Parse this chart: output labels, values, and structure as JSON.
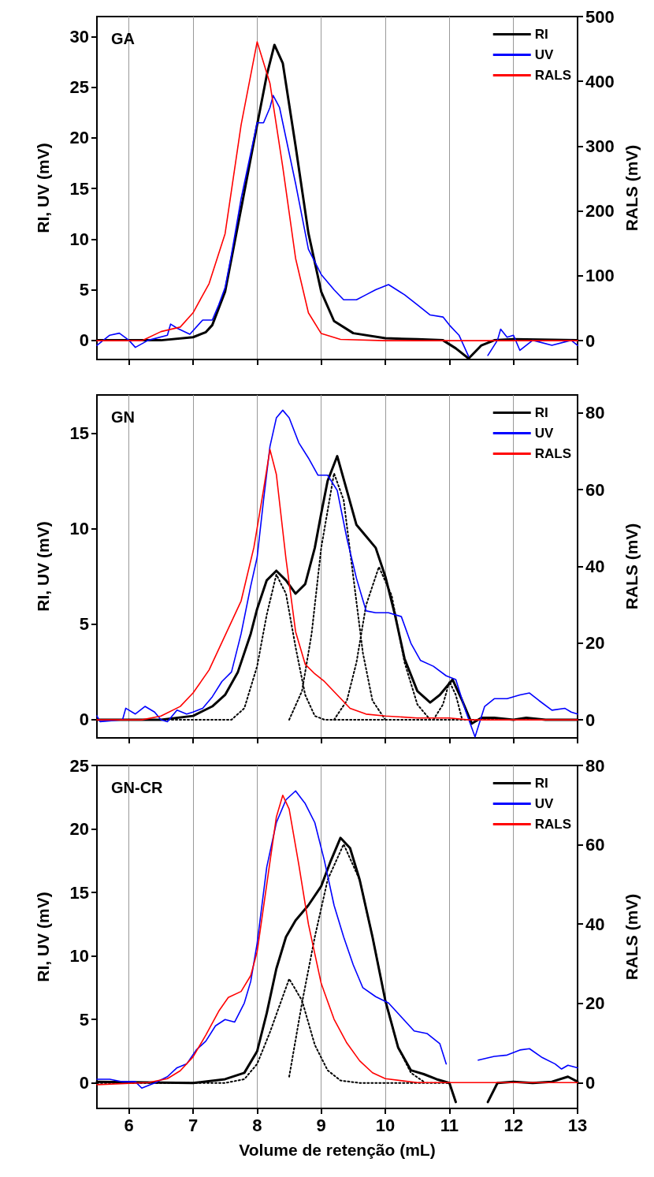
{
  "chart_data": [
    {
      "type": "line",
      "title": "GA",
      "ylabel": "RI, UV (mV)",
      "y2label": "RALS (mV)",
      "xlim": [
        5.5,
        13
      ],
      "xticks": [
        6,
        7,
        8,
        9,
        10,
        11,
        12,
        13
      ],
      "ylim": [
        -1.9,
        32
      ],
      "yticks": [
        0,
        5,
        10,
        15,
        20,
        25,
        30
      ],
      "y2lim": [
        -29,
        500
      ],
      "y2ticks": [
        0,
        100,
        200,
        300,
        400,
        500
      ],
      "grid": "x",
      "legend": "top right",
      "marker": "none",
      "tick_labels": "y",
      "series": [
        {
          "name": "RI",
          "color": "#000000",
          "x": [
            5.5,
            6.5,
            7.0,
            7.2,
            7.3,
            7.5,
            7.75,
            8.0,
            8.15,
            8.27,
            8.4,
            8.6,
            8.8,
            9.0,
            9.2,
            9.5,
            10.0,
            10.5,
            10.9,
            11.1,
            11.3,
            11.5,
            11.7,
            12.0,
            13.0
          ],
          "values": [
            0,
            0,
            0.3,
            0.8,
            1.5,
            4.8,
            13,
            21.3,
            26.2,
            29.2,
            27.4,
            19.2,
            10.6,
            4.8,
            1.9,
            0.7,
            0.2,
            0.1,
            0,
            -0.8,
            -1.8,
            -0.5,
            0,
            0.1,
            0
          ]
        },
        {
          "name": "UV",
          "color": "#0000ff",
          "x": [
            5.5,
            5.7,
            5.85,
            6.0,
            6.1,
            6.3,
            6.6,
            6.65,
            6.75,
            6.95,
            7.15,
            7.3,
            7.4,
            7.5,
            7.6,
            7.75,
            7.9,
            8.0,
            8.1,
            8.2,
            8.25,
            8.35,
            8.45,
            8.6,
            8.8,
            9.0,
            9.2,
            9.35,
            9.55,
            9.7,
            9.85,
            10.05,
            10.3,
            10.5,
            10.7,
            10.9,
            11.0,
            11.15,
            11.3,
            11.4,
            11.5,
            11.6,
            11.75,
            11.8,
            11.9,
            12.0,
            12.1,
            12.3,
            12.6,
            12.9,
            13.0
          ],
          "values": [
            -0.5,
            0.5,
            0.7,
            0,
            -0.7,
            0,
            0.5,
            1.6,
            1.2,
            0.6,
            2.0,
            2.0,
            3.5,
            5.2,
            8.5,
            14,
            18.5,
            21.5,
            21.5,
            23,
            24.2,
            23,
            20,
            15.5,
            9,
            6.5,
            5,
            4,
            4,
            4.5,
            5,
            5.5,
            4.5,
            3.5,
            2.5,
            2.3,
            1.5,
            0.5,
            -1.6,
            null,
            null,
            -1.5,
            0,
            1.1,
            0.3,
            0.5,
            -1,
            0,
            -0.5,
            0,
            -0.5
          ]
        },
        {
          "name": "RALS",
          "color": "#ff0000",
          "axis": "y2",
          "x": [
            5.5,
            6.2,
            6.5,
            6.8,
            7.0,
            7.25,
            7.5,
            7.75,
            8.0,
            8.2,
            8.4,
            8.6,
            8.8,
            9.0,
            9.3,
            10.0,
            11.0,
            13.0
          ],
          "values": [
            0,
            0,
            14,
            21,
            43,
            88,
            165,
            333,
            461,
            397,
            268,
            127,
            43,
            11,
            2,
            0,
            0,
            0
          ]
        }
      ]
    },
    {
      "type": "line",
      "title": "GN",
      "ylabel": "RI, UV (mV)",
      "y2label": "RALS (mV)",
      "xlim": [
        5.5,
        13
      ],
      "xticks": [
        6,
        7,
        8,
        9,
        10,
        11,
        12,
        13
      ],
      "ylim": [
        -0.95,
        17
      ],
      "yticks": [
        0,
        5,
        10,
        15
      ],
      "y2lim": [
        -4.7,
        84.7
      ],
      "y2ticks": [
        0,
        20,
        40,
        60,
        80
      ],
      "grid": "x",
      "legend": "top right",
      "marker": "none",
      "tick_labels": "y",
      "series": [
        {
          "color": "#000000",
          "line_style": "dotted",
          "x": [
            5.5,
            7.6,
            7.8,
            8.0,
            8.15,
            8.3,
            8.45,
            8.6,
            8.75,
            8.9,
            9.05,
            13.0
          ],
          "values": [
            0,
            0,
            0.6,
            2.8,
            5.5,
            7.6,
            6.6,
            3.8,
            1.3,
            0.2,
            0,
            0
          ]
        },
        {
          "color": "#000000",
          "line_style": "dotted",
          "x": [
            8.5,
            8.7,
            8.85,
            9.0,
            9.2,
            9.35,
            9.5,
            9.65,
            9.8,
            10.0
          ],
          "values": [
            0,
            1.5,
            4.5,
            9,
            12.9,
            11.5,
            7.5,
            3.5,
            1,
            0
          ]
        },
        {
          "color": "#000000",
          "line_style": "dotted",
          "x": [
            9.2,
            9.4,
            9.55,
            9.7,
            9.9,
            10.1,
            10.3,
            10.5,
            10.7
          ],
          "values": [
            0,
            1,
            3,
            6,
            8,
            6.5,
            3,
            0.8,
            0
          ]
        },
        {
          "color": "#000000",
          "line_style": "dotted",
          "x": [
            10.75,
            10.9,
            11.0,
            11.1,
            11.2
          ],
          "values": [
            0,
            0.8,
            2.0,
            1.3,
            0
          ]
        },
        {
          "name": "RI",
          "color": "#000000",
          "x": [
            5.5,
            6.5,
            7.0,
            7.3,
            7.5,
            7.7,
            7.9,
            8.0,
            8.15,
            8.3,
            8.45,
            8.6,
            8.75,
            8.9,
            9.0,
            9.1,
            9.25,
            9.4,
            9.55,
            9.7,
            9.85,
            10.0,
            10.15,
            10.3,
            10.5,
            10.7,
            10.85,
            11.05,
            11.2,
            11.35,
            11.5,
            11.7,
            12.0,
            12.2,
            12.5,
            13.0
          ],
          "values": [
            0,
            0,
            0.2,
            0.7,
            1.3,
            2.5,
            4.5,
            5.8,
            7.3,
            7.8,
            7.3,
            6.6,
            7.1,
            9,
            10.8,
            12.5,
            13.8,
            12,
            10.2,
            9.6,
            9.0,
            7.5,
            5.5,
            3.2,
            1.5,
            0.9,
            1.3,
            2.1,
            1.0,
            -0.2,
            0.1,
            0.1,
            0,
            0.1,
            0,
            0
          ]
        },
        {
          "name": "UV",
          "color": "#0000ff",
          "x": [
            5.5,
            5.55,
            5.9,
            5.95,
            6.1,
            6.25,
            6.4,
            6.5,
            6.6,
            6.75,
            6.9,
            7.0,
            7.15,
            7.3,
            7.45,
            7.6,
            7.75,
            7.9,
            8.0,
            8.1,
            8.2,
            8.3,
            8.4,
            8.5,
            8.65,
            8.8,
            8.95,
            9.1,
            9.25,
            9.4,
            9.55,
            9.7,
            9.85,
            10.05,
            10.25,
            10.4,
            10.55,
            10.75,
            10.95,
            11.1,
            11.25,
            11.4,
            11.55,
            11.7,
            11.9,
            12.1,
            12.25,
            12.4,
            12.6,
            12.8,
            12.9,
            13.0
          ],
          "values": [
            0.2,
            -0.1,
            0,
            0.6,
            0.3,
            0.7,
            0.4,
            0,
            -0.1,
            0.5,
            0.3,
            0.4,
            0.6,
            1.2,
            2.0,
            2.5,
            4.5,
            7,
            8.5,
            11.5,
            14.3,
            15.8,
            16.2,
            15.8,
            14.5,
            13.7,
            12.8,
            12.8,
            12,
            9.5,
            7.4,
            5.7,
            5.6,
            5.6,
            5.4,
            4,
            3.1,
            2.8,
            2.3,
            2.1,
            0.5,
            -0.9,
            0.7,
            1.1,
            1.1,
            1.3,
            1.4,
            1.0,
            0.5,
            0.6,
            0.4,
            0.3
          ]
        },
        {
          "name": "RALS",
          "color": "#ff0000",
          "axis": "y2",
          "x": [
            5.5,
            6.2,
            6.5,
            6.8,
            7.0,
            7.25,
            7.5,
            7.75,
            7.95,
            8.1,
            8.2,
            8.3,
            8.45,
            8.6,
            8.75,
            8.9,
            9.05,
            9.25,
            9.45,
            9.7,
            10.0,
            10.5,
            11.0,
            11.3,
            12.0,
            13.0
          ],
          "values": [
            0,
            0,
            1,
            3.5,
            7,
            13,
            22,
            31,
            45,
            60,
            70.5,
            64,
            42,
            23,
            14.5,
            12,
            10,
            6.5,
            3,
            1.5,
            1,
            0.5,
            0.5,
            0,
            0,
            0
          ]
        }
      ]
    },
    {
      "type": "line",
      "title": "GN-CR",
      "xlabel": "Volume de retenção (mL)",
      "ylabel": "RI, UV (mV)",
      "y2label": "RALS (mV)",
      "xlim": [
        5.5,
        13
      ],
      "xticks": [
        6,
        7,
        8,
        9,
        10,
        11,
        12,
        13
      ],
      "ylim": [
        -2,
        25
      ],
      "yticks": [
        0,
        5,
        10,
        15,
        20,
        25
      ],
      "y2lim": [
        -6.5,
        80
      ],
      "y2ticks": [
        0,
        20,
        40,
        60,
        80
      ],
      "grid": "x",
      "legend": "top right",
      "marker": "none",
      "series": [
        {
          "color": "#000000",
          "line_style": "dotted",
          "x": [
            5.5,
            7.5,
            7.8,
            8.0,
            8.2,
            8.5,
            8.7,
            8.9,
            9.1,
            9.3,
            9.6,
            11.0
          ],
          "values": [
            0,
            0,
            0.3,
            1.5,
            4,
            8.2,
            6.5,
            3,
            1,
            0.2,
            0,
            0
          ]
        },
        {
          "color": "#000000",
          "line_style": "dotted",
          "x": [
            8.5,
            8.7,
            8.9,
            9.1,
            9.35,
            9.6,
            9.8,
            10.0,
            10.2,
            10.4,
            10.6
          ],
          "values": [
            0.5,
            6.3,
            11.5,
            16,
            18.8,
            16,
            11.5,
            6.5,
            2.8,
            0.8,
            0.1
          ]
        },
        {
          "name": "RI",
          "color": "#000000",
          "x": [
            5.5,
            7.0,
            7.5,
            7.8,
            8.0,
            8.15,
            8.3,
            8.45,
            8.6,
            8.8,
            9.0,
            9.15,
            9.3,
            9.45,
            9.6,
            9.8,
            10.0,
            10.2,
            10.4,
            10.6,
            10.8,
            11.0,
            11.1,
            11.3,
            11.5,
            11.6,
            11.75,
            12.0,
            12.3,
            12.6,
            12.85,
            13.0
          ],
          "values": [
            0.1,
            0,
            0.3,
            0.8,
            2.5,
            5.5,
            9,
            11.5,
            12.8,
            14,
            15.5,
            17.5,
            19.3,
            18.5,
            16,
            11.5,
            6.5,
            2.8,
            1.0,
            0.7,
            0.3,
            0,
            -1.5,
            null,
            null,
            -1.5,
            0,
            0.1,
            0,
            0.1,
            0.5,
            0.1
          ]
        },
        {
          "name": "UV",
          "color": "#0000ff",
          "x": [
            5.5,
            5.7,
            5.9,
            6.1,
            6.2,
            6.4,
            6.6,
            6.75,
            6.9,
            7.05,
            7.2,
            7.35,
            7.5,
            7.65,
            7.8,
            7.9,
            8.0,
            8.15,
            8.3,
            8.45,
            8.6,
            8.75,
            8.9,
            9.05,
            9.2,
            9.35,
            9.5,
            9.65,
            9.85,
            10.05,
            10.25,
            10.45,
            10.65,
            10.85,
            10.95,
            11.05,
            11.2,
            11.35,
            11.45,
            11.7,
            11.9,
            12.1,
            12.25,
            12.45,
            12.65,
            12.75,
            12.85,
            13.0
          ],
          "values": [
            0.3,
            0.3,
            0.1,
            0.1,
            -0.4,
            0,
            0.5,
            1.2,
            1.5,
            2.6,
            3.3,
            4.5,
            5,
            4.8,
            6.3,
            8,
            11,
            17,
            20.5,
            22.3,
            23,
            22,
            20.5,
            17.5,
            14,
            11.5,
            9.3,
            7.5,
            6.8,
            6.3,
            5.2,
            4.1,
            3.9,
            3.1,
            1.5,
            null,
            null,
            null,
            1.8,
            2.1,
            2.2,
            2.6,
            2.7,
            2,
            1.5,
            1.1,
            1.4,
            1.2
          ]
        },
        {
          "name": "RALS",
          "color": "#ff0000",
          "axis": "y2",
          "x": [
            5.5,
            6.3,
            6.6,
            6.8,
            7.0,
            7.2,
            7.4,
            7.55,
            7.75,
            7.9,
            8.0,
            8.15,
            8.3,
            8.4,
            8.5,
            8.65,
            8.8,
            9.0,
            9.2,
            9.4,
            9.6,
            9.8,
            10.0,
            10.5,
            11.0,
            12.0,
            13.0
          ],
          "values": [
            -0.5,
            0,
            1,
            3,
            6.5,
            12,
            18,
            21.5,
            23,
            27,
            33,
            50,
            67,
            72.5,
            69,
            55,
            40,
            25,
            16,
            10,
            5.5,
            2.5,
            1,
            0,
            0,
            0,
            0
          ]
        }
      ]
    }
  ]
}
